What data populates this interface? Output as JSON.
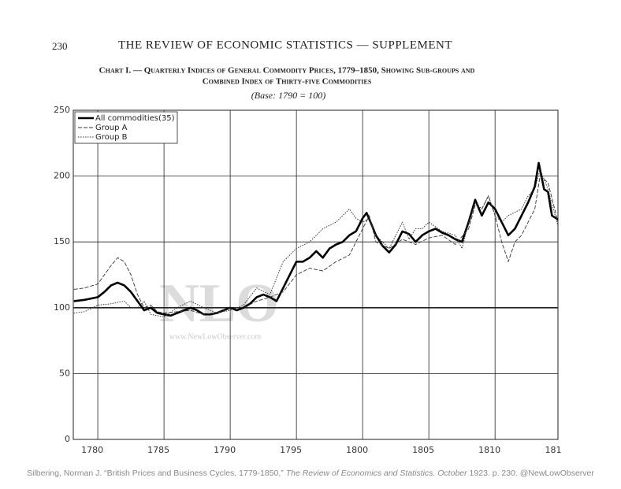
{
  "page_number": "230",
  "header": "THE REVIEW OF ECONOMIC STATISTICS — SUPPLEMENT",
  "footer": {
    "citation": "Silbering, Norman J. “British Prices and Business Cycles, 1779-1850,”",
    "journal": "The Review of Economics and Statistics. October",
    "rest": "1923. p. 230. @NewLowObserver"
  },
  "watermark": {
    "mark": "NLO",
    "site": "www.NewLowObserver.com"
  },
  "chart_data": {
    "type": "line",
    "title": "Chart I. — Quarterly Indices of General Commodity Prices, 1779–1850, Showing Sub-groups and",
    "title_line2": "Combined Index of Thirty-five Commodities",
    "subtitle": "(Base: 1790 = 100)",
    "xlim": [
      1778.15,
      1814.75
    ],
    "xticks": [
      1780,
      1785,
      1790,
      1795,
      1800,
      1805,
      1810,
      {
        "value": 1815,
        "label": "181"
      }
    ],
    "ylim": [
      0,
      250
    ],
    "yticks": [
      0,
      50,
      100,
      150,
      200,
      250
    ],
    "grid": true,
    "legend": "upper left",
    "series": [
      {
        "name": "All commodities(35)",
        "color": "#000000",
        "style": "solid",
        "x": [
          1778.2,
          1779,
          1780,
          1780.5,
          1781,
          1781.5,
          1782,
          1782.5,
          1783,
          1783.5,
          1784,
          1784.5,
          1785,
          1785.5,
          1786,
          1787,
          1787.5,
          1788,
          1788.5,
          1789,
          1789.5,
          1790,
          1790.5,
          1791,
          1791.5,
          1792,
          1792.5,
          1793,
          1793.5,
          1794,
          1794.5,
          1795,
          1795.5,
          1796,
          1796.5,
          1797,
          1797.5,
          1798,
          1798.5,
          1799,
          1799.5,
          1800,
          1800.3,
          1800.6,
          1801,
          1801.5,
          1802,
          1802.5,
          1803,
          1803.5,
          1804,
          1804.5,
          1805,
          1805.5,
          1806,
          1806.5,
          1807,
          1807.5,
          1808,
          1808.5,
          1809,
          1809.5,
          1810,
          1810.5,
          1811,
          1811.5,
          1812,
          1812.5,
          1813,
          1813.3,
          1813.7,
          1814,
          1814.3,
          1814.75
        ],
        "values": [
          105,
          106,
          108,
          112,
          117,
          119,
          117,
          112,
          105,
          98,
          100,
          96,
          95,
          94,
          96,
          100,
          98,
          95,
          95,
          96,
          98,
          100,
          98,
          100,
          103,
          108,
          110,
          108,
          105,
          115,
          125,
          135,
          135,
          138,
          143,
          138,
          145,
          148,
          150,
          155,
          158,
          168,
          172,
          165,
          155,
          147,
          142,
          148,
          158,
          156,
          150,
          155,
          158,
          160,
          157,
          155,
          152,
          150,
          165,
          182,
          170,
          180,
          175,
          165,
          155,
          160,
          170,
          180,
          192,
          210,
          190,
          188,
          170,
          167
        ]
      },
      {
        "name": "Group A",
        "color": "#333333",
        "style": "dashed",
        "x": [
          1778.2,
          1779,
          1780,
          1780.5,
          1781,
          1781.5,
          1782,
          1782.5,
          1783,
          1783.5,
          1784,
          1784.5,
          1785,
          1786,
          1787,
          1788,
          1789,
          1790,
          1791,
          1792,
          1793,
          1794,
          1795,
          1796,
          1797,
          1798,
          1799,
          1800,
          1800.5,
          1801,
          1802,
          1803,
          1804,
          1805,
          1806,
          1807,
          1808,
          1808.5,
          1809,
          1809.5,
          1810,
          1810.5,
          1811,
          1811.5,
          1812,
          1812.5,
          1813,
          1813.4,
          1814,
          1814.75
        ],
        "values": [
          114,
          115,
          118,
          125,
          132,
          138,
          135,
          125,
          110,
          100,
          102,
          97,
          96,
          97,
          98,
          95,
          96,
          100,
          100,
          105,
          108,
          112,
          125,
          130,
          128,
          135,
          140,
          160,
          170,
          150,
          145,
          152,
          148,
          153,
          155,
          148,
          160,
          178,
          175,
          185,
          170,
          150,
          135,
          150,
          155,
          165,
          175,
          200,
          195,
          165
        ]
      },
      {
        "name": "Group B",
        "color": "#333333",
        "style": "dotted",
        "x": [
          1778.2,
          1779,
          1780,
          1781,
          1782,
          1782.5,
          1783,
          1783.5,
          1784,
          1785,
          1786,
          1787,
          1788,
          1789,
          1790,
          1791,
          1792,
          1793,
          1794,
          1795,
          1796,
          1797,
          1798,
          1799,
          1799.5,
          1800,
          1800.5,
          1801,
          1802,
          1803,
          1803.5,
          1804,
          1804.5,
          1805,
          1806,
          1807,
          1807.5,
          1808,
          1808.5,
          1809,
          1809.5,
          1810,
          1810.5,
          1811,
          1812,
          1812.5,
          1813,
          1813.4,
          1814,
          1814.75
        ],
        "values": [
          96,
          97,
          102,
          103,
          105,
          100,
          100,
          105,
          95,
          93,
          100,
          105,
          100,
          96,
          98,
          102,
          115,
          110,
          135,
          145,
          150,
          160,
          165,
          175,
          168,
          165,
          168,
          155,
          145,
          165,
          152,
          160,
          160,
          165,
          158,
          155,
          145,
          165,
          180,
          175,
          185,
          170,
          165,
          170,
          175,
          185,
          190,
          205,
          190,
          162
        ]
      }
    ]
  }
}
